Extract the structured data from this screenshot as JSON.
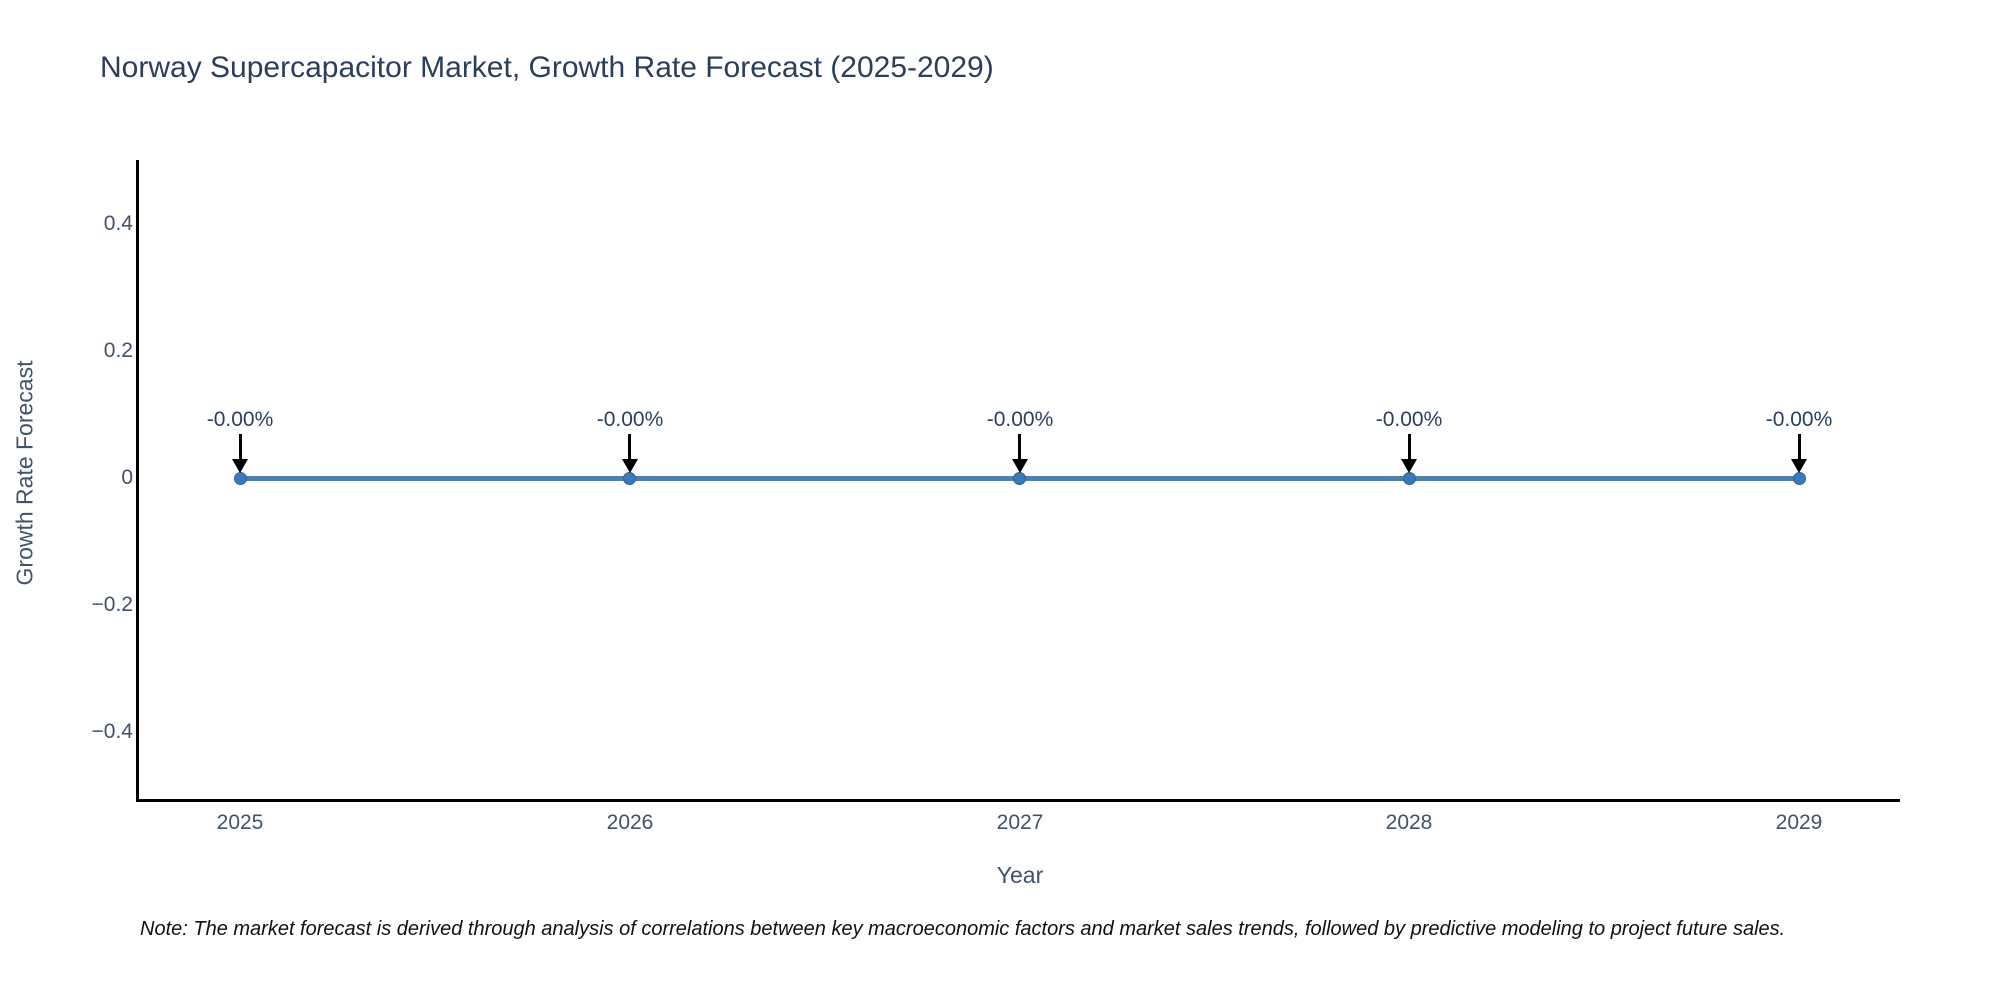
{
  "page": {
    "title": "Norway Supercapacitor Market, Growth Rate Forecast (2025-2029)",
    "note": "Note: The market forecast is derived through analysis of correlations between key macroeconomic factors and market sales trends, followed by predictive modeling to project future sales."
  },
  "chart_data": {
    "type": "line",
    "title": "Norway Supercapacitor Market, Growth Rate Forecast (2025-2029)",
    "xlabel": "Year",
    "ylabel": "Growth Rate Forecast",
    "x": [
      2025,
      2026,
      2027,
      2028,
      2029
    ],
    "series": [
      {
        "name": "Growth Rate Forecast",
        "values": [
          -0.0,
          -0.0,
          -0.0,
          -0.0,
          -0.0
        ]
      }
    ],
    "point_labels": [
      "-0.00%",
      "-0.00%",
      "-0.00%",
      "-0.00%",
      "-0.00%"
    ],
    "x_tick_labels": [
      "2025",
      "2026",
      "2027",
      "2028",
      "2029"
    ],
    "y_tick_values": [
      0.4,
      0.2,
      0,
      -0.2,
      -0.4
    ],
    "y_tick_labels": [
      "0.4",
      "0.2",
      "0",
      "−0.2",
      "−0.4"
    ],
    "ylim": [
      -0.5,
      0.5
    ],
    "grid": false,
    "legend": "none",
    "annotation_style": "downward-black-arrow-to-point",
    "colors": {
      "line": "#4e80ab",
      "marker": "#3b7ab8",
      "marker_edge": "#2e6396",
      "arrow": "#000000",
      "title_text": "#2b3f5c",
      "tick_text": "#42526b",
      "axis_line": "#000000",
      "note_text": "#111111",
      "background": "#ffffff"
    }
  }
}
